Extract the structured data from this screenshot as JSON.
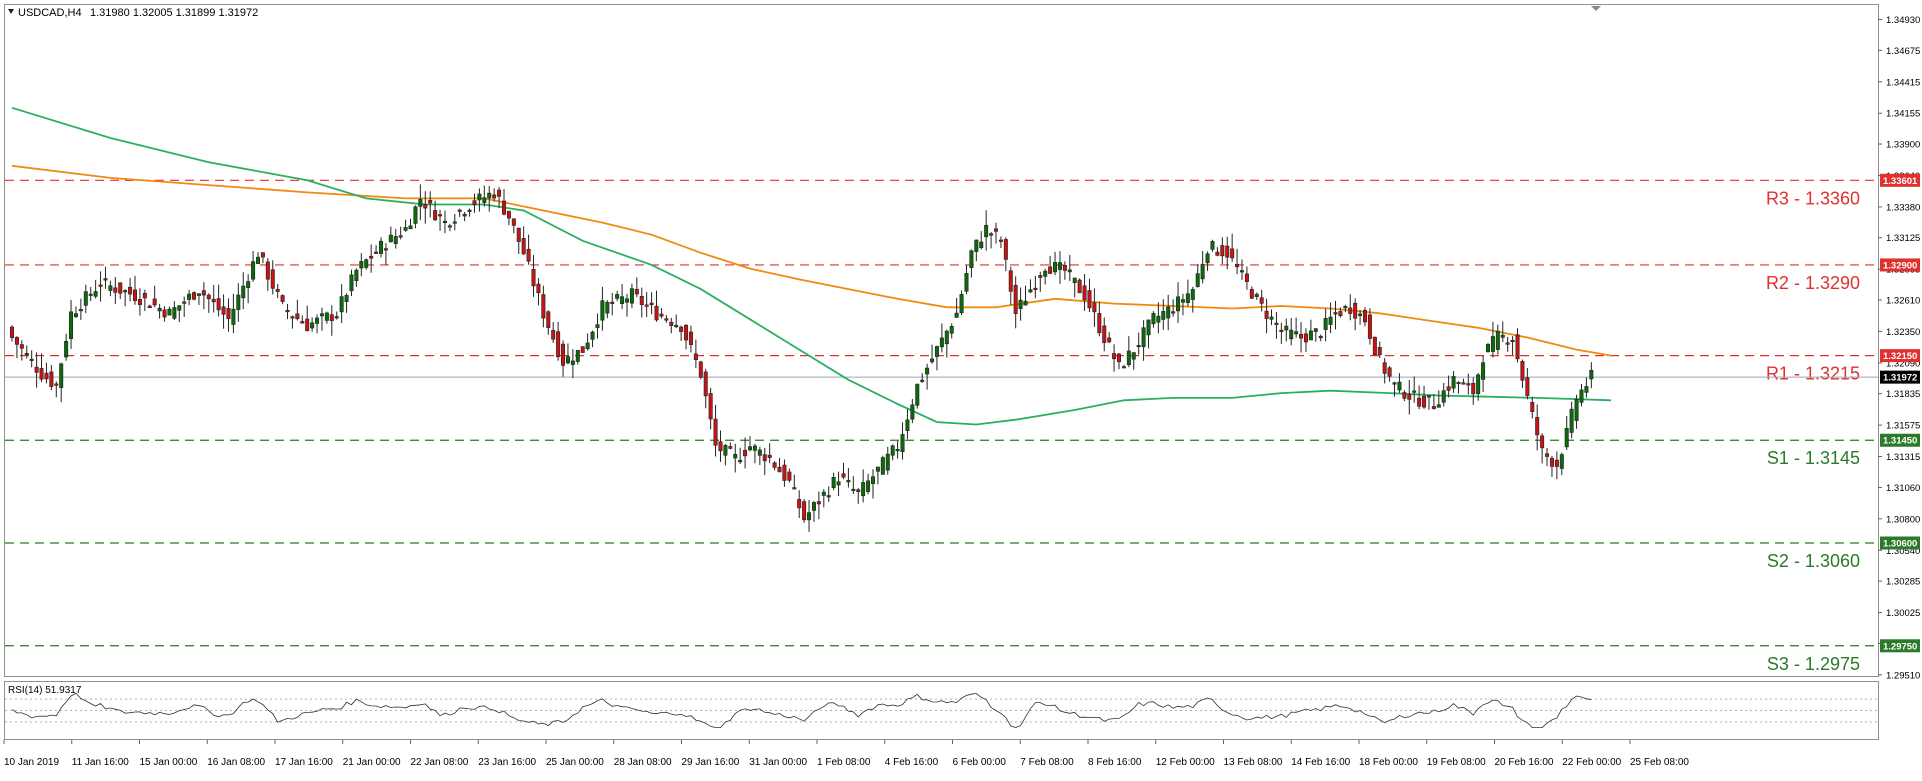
{
  "header": {
    "symbol_label": "USDCAD,H4",
    "ohlc": "1.31980 1.32005 1.31899 1.31972"
  },
  "rsi_label": "RSI(14) 51.9317",
  "colors": {
    "bull": "#0a6b0a",
    "bear": "#c81414",
    "grid_bg": "#ffffff",
    "resistance": "#e03030",
    "support": "#2a7a2a",
    "sma_green": "#2ab060",
    "sma_orange": "#f08a10",
    "current": "#98a8b8"
  },
  "chart_data": {
    "type": "candlestick",
    "title": "USDCAD,H4",
    "y_range": [
      1.295,
      1.3505
    ],
    "y_ticks": [
      "1.34930",
      "1.34675",
      "1.34415",
      "1.34155",
      "1.33900",
      "1.33640",
      "1.33380",
      "1.33125",
      "1.32865",
      "1.32610",
      "1.32350",
      "1.32090",
      "1.31835",
      "1.31575",
      "1.31315",
      "1.31060",
      "1.30800",
      "1.30540",
      "1.30285",
      "1.30025",
      "1.29770",
      "1.29510"
    ],
    "x_labels": [
      "10 Jan 2019",
      "11 Jan 16:00",
      "15 Jan 00:00",
      "16 Jan 08:00",
      "17 Jan 16:00",
      "21 Jan 00:00",
      "22 Jan 08:00",
      "23 Jan 16:00",
      "25 Jan 00:00",
      "28 Jan 08:00",
      "29 Jan 16:00",
      "31 Jan 00:00",
      "1 Feb 08:00",
      "4 Feb 16:00",
      "6 Feb 00:00",
      "7 Feb 08:00",
      "8 Feb 16:00",
      "12 Feb 00:00",
      "13 Feb 08:00",
      "14 Feb 16:00",
      "18 Feb 00:00",
      "19 Feb 08:00",
      "20 Feb 16:00",
      "22 Feb 00:00",
      "25 Feb 08:00"
    ],
    "levels": [
      {
        "label": "R3 - 1.3360",
        "value": 1.336,
        "tag": "1.33601",
        "kind": "resistance"
      },
      {
        "label": "R2 - 1.3290",
        "value": 1.329,
        "tag": "1.32900",
        "kind": "resistance"
      },
      {
        "label": "R1 - 1.3215",
        "value": 1.3215,
        "tag": "1.32150",
        "kind": "resistance"
      },
      {
        "label": "S1 -  1.3145",
        "value": 1.3145,
        "tag": "1.31450",
        "kind": "support"
      },
      {
        "label": "S2 - 1.3060",
        "value": 1.306,
        "tag": "1.30600",
        "kind": "support"
      },
      {
        "label": "S3 - 1.2975",
        "value": 1.2975,
        "tag": "1.29750",
        "kind": "support"
      }
    ],
    "current_price": {
      "value": 1.31972,
      "tag": "1.31972"
    },
    "anchors": [
      [
        0,
        1.323
      ],
      [
        6,
        1.32
      ],
      [
        9,
        1.319
      ],
      [
        12,
        1.325
      ],
      [
        18,
        1.3275
      ],
      [
        25,
        1.3265
      ],
      [
        32,
        1.325
      ],
      [
        38,
        1.327
      ],
      [
        44,
        1.3245
      ],
      [
        50,
        1.33
      ],
      [
        55,
        1.3255
      ],
      [
        60,
        1.324
      ],
      [
        66,
        1.325
      ],
      [
        70,
        1.3285
      ],
      [
        75,
        1.3305
      ],
      [
        80,
        1.332
      ],
      [
        83,
        1.3345
      ],
      [
        88,
        1.3325
      ],
      [
        93,
        1.334
      ],
      [
        98,
        1.335
      ],
      [
        101,
        1.333
      ],
      [
        104,
        1.33
      ],
      [
        108,
        1.325
      ],
      [
        112,
        1.321
      ],
      [
        116,
        1.322
      ],
      [
        120,
        1.3255
      ],
      [
        126,
        1.3265
      ],
      [
        131,
        1.325
      ],
      [
        136,
        1.324
      ],
      [
        140,
        1.32
      ],
      [
        143,
        1.314
      ],
      [
        147,
        1.313
      ],
      [
        150,
        1.314
      ],
      [
        154,
        1.313
      ],
      [
        158,
        1.311
      ],
      [
        161,
        1.308
      ],
      [
        164,
        1.3095
      ],
      [
        168,
        1.3115
      ],
      [
        172,
        1.31
      ],
      [
        176,
        1.312
      ],
      [
        180,
        1.314
      ],
      [
        184,
        1.319
      ],
      [
        188,
        1.322
      ],
      [
        192,
        1.325
      ],
      [
        195,
        1.33
      ],
      [
        198,
        1.332
      ],
      [
        201,
        1.331
      ],
      [
        204,
        1.325
      ],
      [
        207,
        1.327
      ],
      [
        210,
        1.329
      ],
      [
        214,
        1.3285
      ],
      [
        218,
        1.3265
      ],
      [
        222,
        1.323
      ],
      [
        225,
        1.3205
      ],
      [
        228,
        1.322
      ],
      [
        232,
        1.3245
      ],
      [
        236,
        1.3255
      ],
      [
        240,
        1.327
      ],
      [
        243,
        1.3305
      ],
      [
        247,
        1.33
      ],
      [
        250,
        1.328
      ],
      [
        254,
        1.3255
      ],
      [
        258,
        1.3235
      ],
      [
        262,
        1.323
      ],
      [
        266,
        1.3235
      ],
      [
        269,
        1.325
      ],
      [
        272,
        1.3255
      ],
      [
        275,
        1.3245
      ],
      [
        278,
        1.321
      ],
      [
        281,
        1.319
      ],
      [
        285,
        1.318
      ],
      [
        289,
        1.3175
      ],
      [
        293,
        1.3195
      ],
      [
        297,
        1.3185
      ],
      [
        299,
        1.3215
      ],
      [
        302,
        1.323
      ],
      [
        305,
        1.323
      ],
      [
        308,
        1.318
      ],
      [
        311,
        1.3135
      ],
      [
        314,
        1.3125
      ],
      [
        316,
        1.315
      ],
      [
        318,
        1.318
      ],
      [
        321,
        1.3197
      ]
    ],
    "sma_green": [
      [
        0,
        1.342
      ],
      [
        20,
        1.3395
      ],
      [
        40,
        1.3375
      ],
      [
        60,
        1.336
      ],
      [
        72,
        1.3345
      ],
      [
        84,
        1.334
      ],
      [
        96,
        1.334
      ],
      [
        104,
        1.3335
      ],
      [
        116,
        1.331
      ],
      [
        130,
        1.329
      ],
      [
        140,
        1.327
      ],
      [
        150,
        1.3245
      ],
      [
        160,
        1.322
      ],
      [
        170,
        1.3195
      ],
      [
        180,
        1.3175
      ],
      [
        188,
        1.316
      ],
      [
        196,
        1.3158
      ],
      [
        204,
        1.3162
      ],
      [
        216,
        1.317
      ],
      [
        226,
        1.3178
      ],
      [
        236,
        1.318
      ],
      [
        248,
        1.318
      ],
      [
        258,
        1.3184
      ],
      [
        268,
        1.3186
      ],
      [
        280,
        1.3184
      ],
      [
        290,
        1.3182
      ],
      [
        300,
        1.3181
      ],
      [
        310,
        1.318
      ],
      [
        318,
        1.3179
      ],
      [
        325,
        1.3178
      ]
    ],
    "sma_orange": [
      [
        0,
        1.3372
      ],
      [
        20,
        1.3362
      ],
      [
        40,
        1.3356
      ],
      [
        60,
        1.335
      ],
      [
        80,
        1.3345
      ],
      [
        96,
        1.3345
      ],
      [
        108,
        1.3335
      ],
      [
        120,
        1.3325
      ],
      [
        130,
        1.3315
      ],
      [
        140,
        1.33
      ],
      [
        150,
        1.3287
      ],
      [
        160,
        1.3278
      ],
      [
        170,
        1.327
      ],
      [
        180,
        1.3262
      ],
      [
        190,
        1.3255
      ],
      [
        200,
        1.3255
      ],
      [
        212,
        1.3262
      ],
      [
        224,
        1.3258
      ],
      [
        236,
        1.3256
      ],
      [
        248,
        1.3254
      ],
      [
        258,
        1.3256
      ],
      [
        268,
        1.3254
      ],
      [
        278,
        1.325
      ],
      [
        288,
        1.3244
      ],
      [
        298,
        1.3238
      ],
      [
        308,
        1.323
      ],
      [
        318,
        1.322
      ],
      [
        325,
        1.3215
      ]
    ]
  }
}
